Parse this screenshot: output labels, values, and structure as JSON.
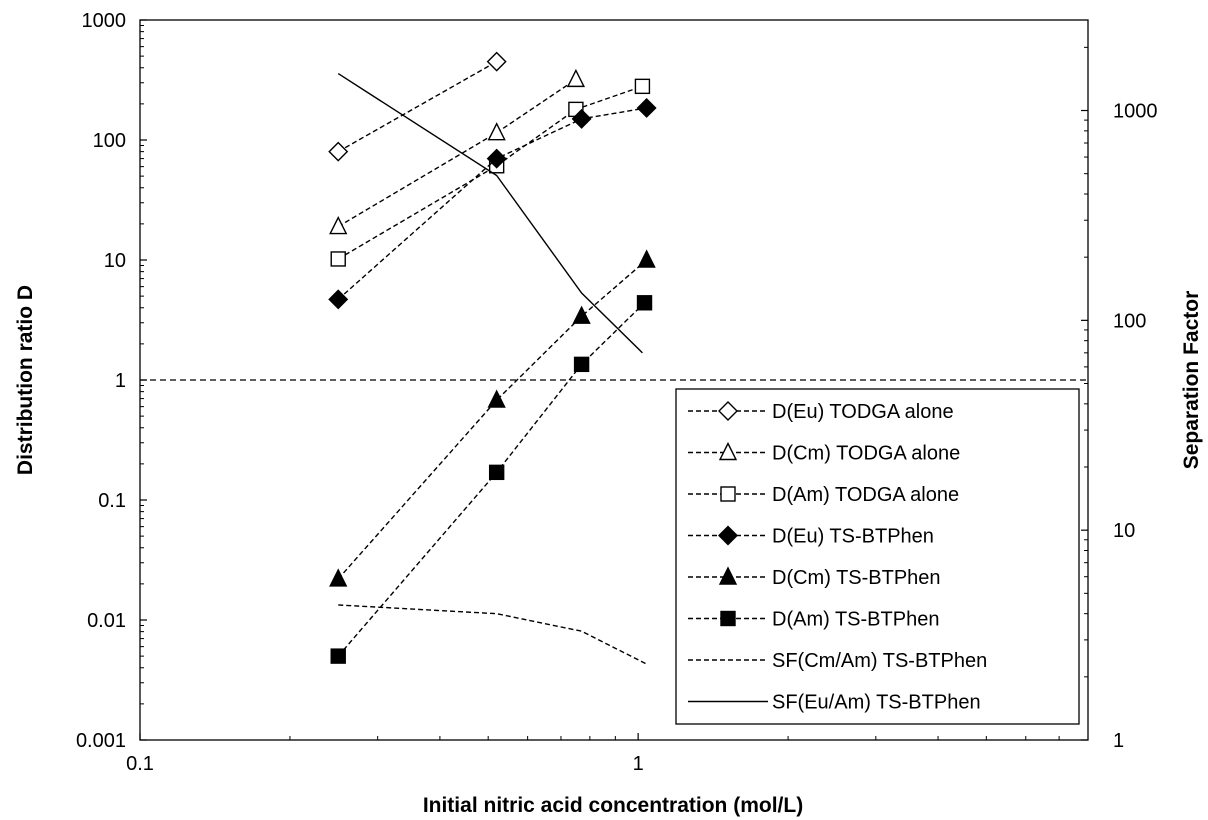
{
  "chart_data": {
    "type": "scatter",
    "xlabel": "Initial nitric acid concentration (mol/L)",
    "ylabel": "Distribution ratio D",
    "y2label": "Separation Factor",
    "x_scale": "log",
    "y_scale": "log",
    "y2_scale": "log",
    "xlim": [
      0.1,
      8
    ],
    "ylim": [
      0.001,
      1000
    ],
    "y2lim": [
      1,
      2700
    ],
    "x_ticks": [
      "0.1",
      "1"
    ],
    "y_ticks": [
      "0.001",
      "0.01",
      "0.1",
      "1",
      "10",
      "100",
      "1000"
    ],
    "y2_ticks": [
      "1",
      "10",
      "100",
      "1000"
    ],
    "grid": false,
    "legend_position": "bottom-right",
    "reference_line": {
      "y": 1,
      "style": "dashed"
    },
    "series": [
      {
        "name": "D(Eu) TODGA alone",
        "axis": "left",
        "marker": "diamond-open",
        "line": "dashed",
        "x": [
          0.25,
          0.52
        ],
        "y": [
          80,
          450
        ]
      },
      {
        "name": "D(Cm) TODGA alone",
        "axis": "left",
        "marker": "triangle-open",
        "line": "dashed",
        "x": [
          0.25,
          0.52,
          0.75
        ],
        "y": [
          19,
          115,
          320
        ]
      },
      {
        "name": "D(Am) TODGA alone",
        "axis": "left",
        "marker": "square-open",
        "line": "dashed",
        "x": [
          0.25,
          0.52,
          0.75,
          1.02
        ],
        "y": [
          10.2,
          61,
          180,
          280
        ]
      },
      {
        "name": "D(Eu) TS-BTPhen",
        "axis": "left",
        "marker": "diamond-filled",
        "line": "dashed",
        "x": [
          0.25,
          0.52,
          0.77,
          1.04
        ],
        "y": [
          4.7,
          70,
          150,
          185
        ]
      },
      {
        "name": "D(Cm) TS-BTPhen",
        "axis": "left",
        "marker": "triangle-filled",
        "line": "dashed",
        "x": [
          0.25,
          0.52,
          0.77,
          1.04
        ],
        "y": [
          0.022,
          0.68,
          3.4,
          10
        ]
      },
      {
        "name": "D(Am) TS-BTPhen",
        "axis": "left",
        "marker": "square-filled",
        "line": "dashed",
        "x": [
          0.25,
          0.52,
          0.77,
          1.03
        ],
        "y": [
          0.005,
          0.17,
          1.35,
          4.4
        ]
      },
      {
        "name": "SF(Cm/Am) TS-BTPhen",
        "axis": "right",
        "marker": "none",
        "line": "dashed",
        "x": [
          0.25,
          0.52,
          0.77,
          1.04
        ],
        "y": [
          4.4,
          4.0,
          3.3,
          2.3
        ]
      },
      {
        "name": "SF(Eu/Am) TS-BTPhen",
        "axis": "right",
        "marker": "none",
        "line": "solid",
        "x": [
          0.25,
          0.52,
          0.77,
          1.02
        ],
        "y": [
          1500,
          490,
          135,
          70
        ]
      }
    ]
  }
}
